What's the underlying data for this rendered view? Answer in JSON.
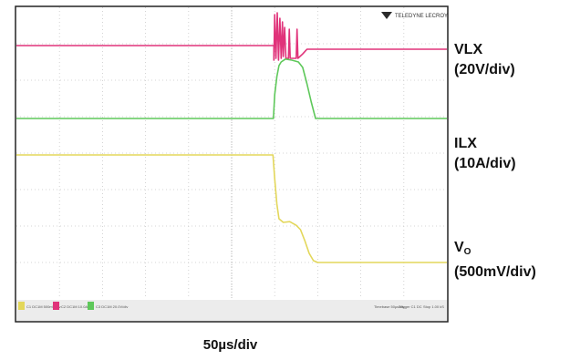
{
  "chart_data": {
    "type": "line",
    "title": "",
    "xlabel": "50µs/div",
    "brand": "TELEDYNE LECROY",
    "divisions": {
      "x": 10,
      "y": 8
    },
    "grid": true,
    "colors": {
      "background": "#ffffff",
      "grid": "#c9c9c9",
      "VLX": "#e0337a",
      "ILX": "#5ec85a",
      "VO": "#e3d75a"
    },
    "series": [
      {
        "name": "VLX",
        "label_main": "VLX",
        "label_sub": "",
        "label_scale": "(20V/div)",
        "unit_per_div": "20V/div",
        "points": [
          [
            0,
            6.95
          ],
          [
            5.98,
            6.95
          ],
          [
            5.98,
            6.55
          ],
          [
            6.0,
            7.8
          ],
          [
            6.03,
            6.6
          ],
          [
            6.06,
            7.85
          ],
          [
            6.09,
            6.55
          ],
          [
            6.12,
            7.7
          ],
          [
            6.15,
            6.6
          ],
          [
            6.18,
            7.6
          ],
          [
            6.2,
            6.65
          ],
          [
            6.23,
            7.45
          ],
          [
            6.26,
            6.6
          ],
          [
            6.32,
            6.6
          ],
          [
            6.34,
            7.4
          ],
          [
            6.36,
            6.6
          ],
          [
            6.5,
            6.6
          ],
          [
            6.52,
            7.4
          ],
          [
            6.54,
            6.6
          ],
          [
            6.65,
            6.72
          ],
          [
            6.75,
            6.85
          ],
          [
            10,
            6.85
          ]
        ]
      },
      {
        "name": "ILX",
        "label_main": "ILX",
        "label_sub": "",
        "label_scale": "(10A/div)",
        "unit_per_div": "10A/div",
        "points": [
          [
            0,
            4.95
          ],
          [
            5.97,
            4.95
          ],
          [
            6.0,
            5.6
          ],
          [
            6.05,
            6.1
          ],
          [
            6.1,
            6.4
          ],
          [
            6.15,
            6.5
          ],
          [
            6.25,
            6.58
          ],
          [
            6.4,
            6.55
          ],
          [
            6.55,
            6.5
          ],
          [
            6.65,
            6.35
          ],
          [
            6.75,
            5.9
          ],
          [
            6.85,
            5.4
          ],
          [
            6.95,
            4.95
          ],
          [
            10,
            4.95
          ]
        ]
      },
      {
        "name": "VO",
        "label_main": "V",
        "label_sub": "O",
        "label_scale": "(500mV/div)",
        "unit_per_div": "500mV/div",
        "points": [
          [
            0,
            3.95
          ],
          [
            5.96,
            3.95
          ],
          [
            6.0,
            3.3
          ],
          [
            6.05,
            2.6
          ],
          [
            6.1,
            2.2
          ],
          [
            6.2,
            2.1
          ],
          [
            6.35,
            2.12
          ],
          [
            6.5,
            2.02
          ],
          [
            6.6,
            1.9
          ],
          [
            6.7,
            1.6
          ],
          [
            6.8,
            1.25
          ],
          [
            6.9,
            1.05
          ],
          [
            7.0,
            1.0
          ],
          [
            10,
            1.0
          ]
        ]
      }
    ],
    "status_bar": {
      "left": [
        "C1 DC1M 500mV/div",
        "C2 DC1M 10.0A/div",
        "C3 DC1M 20.0V/div"
      ],
      "right": [
        "Timebase 50µs/div",
        "Trigger C1 DC",
        "Stop 1.00 kS"
      ]
    }
  }
}
